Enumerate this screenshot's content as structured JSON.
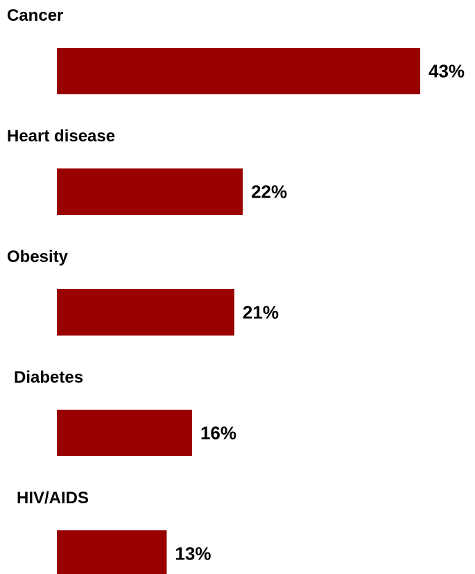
{
  "chart_data": {
    "type": "bar",
    "orientation": "horizontal",
    "categories": [
      "Cancer",
      "Heart disease",
      "Obesity",
      "Diabetes",
      "HIV/AIDS"
    ],
    "values": [
      43,
      22,
      21,
      16,
      13
    ],
    "value_labels": [
      "43%",
      "22%",
      "21%",
      "16%",
      "13%"
    ],
    "unit": "%",
    "bar_color": "#990000",
    "xlim": [
      0,
      43
    ],
    "grid": false,
    "legend": "none"
  }
}
